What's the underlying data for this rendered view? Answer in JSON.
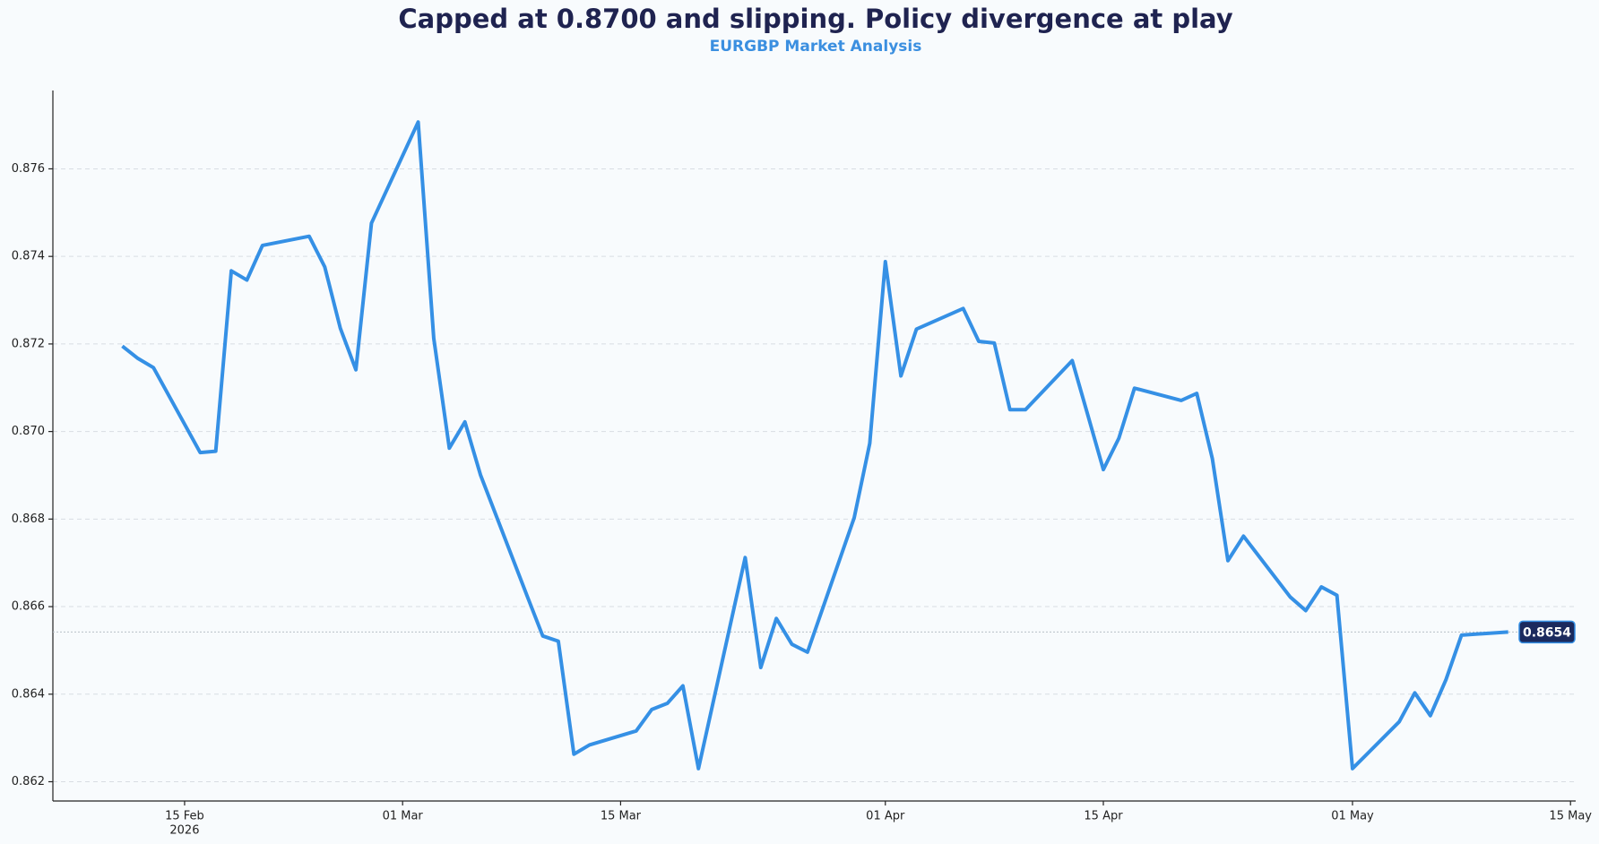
{
  "chart_data": {
    "type": "line",
    "title": "Capped at 0.8700 and slipping. Policy divergence at play",
    "subtitle": "EURGBP Market Analysis",
    "x": [
      "2026-02-11",
      "2026-02-12",
      "2026-02-13",
      "2026-02-16",
      "2026-02-17",
      "2026-02-18",
      "2026-02-19",
      "2026-02-20",
      "2026-02-23",
      "2026-02-24",
      "2026-02-25",
      "2026-02-26",
      "2026-02-27",
      "2026-03-02",
      "2026-03-03",
      "2026-03-04",
      "2026-03-05",
      "2026-03-06",
      "2026-03-09",
      "2026-03-10",
      "2026-03-11",
      "2026-03-12",
      "2026-03-13",
      "2026-03-16",
      "2026-03-17",
      "2026-03-18",
      "2026-03-19",
      "2026-03-20",
      "2026-03-23",
      "2026-03-24",
      "2026-03-25",
      "2026-03-26",
      "2026-03-27",
      "2026-03-30",
      "2026-03-31",
      "2026-04-01",
      "2026-04-02",
      "2026-04-03",
      "2026-04-06",
      "2026-04-07",
      "2026-04-08",
      "2026-04-09",
      "2026-04-10",
      "2026-04-13",
      "2026-04-14",
      "2026-04-15",
      "2026-04-16",
      "2026-04-17",
      "2026-04-20",
      "2026-04-21",
      "2026-04-22",
      "2026-04-23",
      "2026-04-24",
      "2026-04-27",
      "2026-04-28",
      "2026-04-29",
      "2026-04-30",
      "2026-05-01",
      "2026-05-04",
      "2026-05-05",
      "2026-05-06",
      "2026-05-07",
      "2026-05-08",
      "2026-05-11"
    ],
    "values": [
      0.87195,
      0.87167,
      0.87146,
      0.86952,
      0.86955,
      0.87367,
      0.87346,
      0.87425,
      0.87446,
      0.87376,
      0.87236,
      0.87141,
      0.87476,
      0.87707,
      0.87213,
      0.86962,
      0.87022,
      0.86901,
      0.86624,
      0.86533,
      0.86521,
      0.86263,
      0.86284,
      0.86316,
      0.86365,
      0.86379,
      0.86419,
      0.8623,
      0.86712,
      0.86461,
      0.86573,
      0.86514,
      0.86496,
      0.86803,
      0.86973,
      0.87388,
      0.87127,
      0.87234,
      0.87281,
      0.87206,
      0.87202,
      0.8705,
      0.8705,
      0.87162,
      0.87038,
      0.86913,
      0.86985,
      0.87099,
      0.87071,
      0.87087,
      0.86938,
      0.86705,
      0.86761,
      0.86622,
      0.86591,
      0.86645,
      0.86626,
      0.8623,
      0.86337,
      0.86403,
      0.86351,
      0.86433,
      0.86535,
      0.86542
    ],
    "color": "#3590e5",
    "last_value_label": "0.8654",
    "xlim": [
      "2026-02-06T13:00:00Z",
      "2026-05-15T08:00:00Z"
    ],
    "xticks": [
      {
        "value": "2026-02-15",
        "label": "15 Feb"
      },
      {
        "value": "2026-03-01",
        "label": "01 Mar"
      },
      {
        "value": "2026-03-15",
        "label": "15 Mar"
      },
      {
        "value": "2026-04-01",
        "label": "01 Apr"
      },
      {
        "value": "2026-04-15",
        "label": "15 Apr"
      },
      {
        "value": "2026-05-01",
        "label": "01 May"
      },
      {
        "value": "2026-05-15",
        "label": "15 May"
      }
    ],
    "x_year": "2026",
    "ylim": [
      0.86156,
      0.87779
    ],
    "yticks": [
      {
        "value": 0.862,
        "label": "0.862"
      },
      {
        "value": 0.864,
        "label": "0.864"
      },
      {
        "value": 0.866,
        "label": "0.866"
      },
      {
        "value": 0.868,
        "label": "0.868"
      },
      {
        "value": 0.87,
        "label": "0.870"
      },
      {
        "value": 0.872,
        "label": "0.872"
      },
      {
        "value": 0.874,
        "label": "0.874"
      },
      {
        "value": 0.876,
        "label": "0.876"
      }
    ],
    "grid": true
  }
}
